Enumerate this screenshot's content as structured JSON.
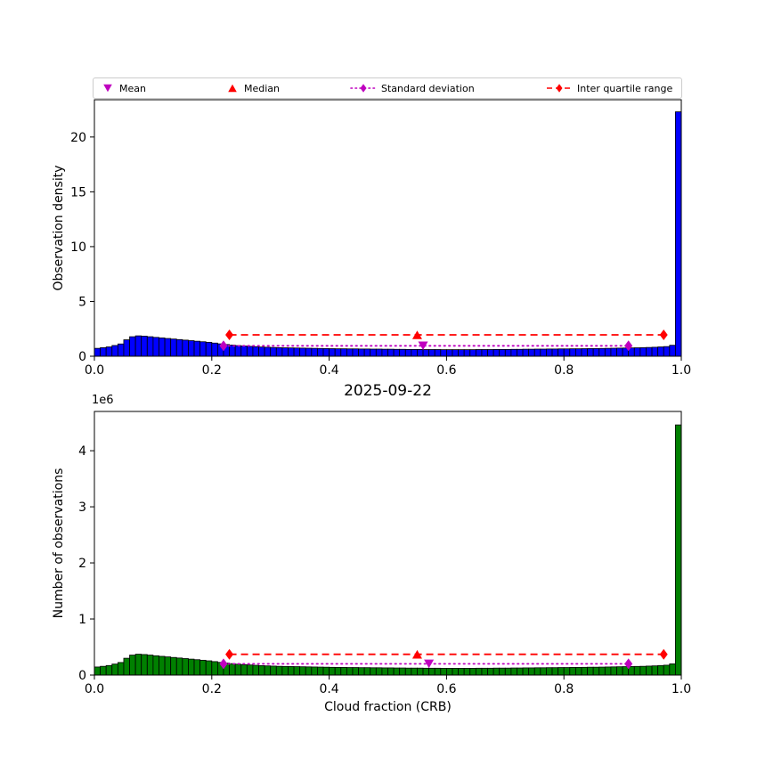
{
  "figure": {
    "title": "2025-09-22",
    "xlabel": "Cloud fraction (CRB)",
    "offset_text": "1e6"
  },
  "legend": {
    "items": [
      {
        "label": "Mean",
        "marker": "triangle-down",
        "color": "#bf00bf",
        "line": "none"
      },
      {
        "label": "Median",
        "marker": "triangle-up",
        "color": "#ff0000",
        "line": "none"
      },
      {
        "label": "Standard deviation",
        "marker": "diamond",
        "color": "#bf00bf",
        "line": "dotted"
      },
      {
        "label": "Inter quartile range",
        "marker": "diamond",
        "color": "#ff0000",
        "line": "dashed"
      }
    ]
  },
  "chart_data": [
    {
      "name": "observation-density-histogram",
      "type": "bar",
      "title": "",
      "xlabel": "",
      "ylabel": "Observation density",
      "bar_color": "#0000ff",
      "edge_color": "#000000",
      "xlim": [
        0.0,
        1.0
      ],
      "ylim": [
        0,
        23.4
      ],
      "xticks": [
        0.0,
        0.2,
        0.4,
        0.6,
        0.8,
        1.0
      ],
      "xtick_labels": [
        "0.0",
        "0.2",
        "0.4",
        "0.6",
        "0.8",
        "1.0"
      ],
      "yticks": [
        0,
        5,
        10,
        15,
        20
      ],
      "ytick_labels": [
        "0",
        "5",
        "10",
        "15",
        "20"
      ],
      "bin_start": 0.0,
      "bin_width": 0.01,
      "values": [
        0.72,
        0.78,
        0.85,
        0.98,
        1.12,
        1.5,
        1.78,
        1.86,
        1.83,
        1.78,
        1.72,
        1.67,
        1.62,
        1.57,
        1.52,
        1.47,
        1.42,
        1.37,
        1.32,
        1.27,
        1.2,
        1.13,
        1.07,
        1.02,
        0.97,
        0.93,
        0.9,
        0.87,
        0.84,
        0.82,
        0.8,
        0.78,
        0.77,
        0.76,
        0.75,
        0.74,
        0.73,
        0.72,
        0.71,
        0.7,
        0.69,
        0.68,
        0.68,
        0.67,
        0.67,
        0.66,
        0.66,
        0.65,
        0.65,
        0.64,
        0.64,
        0.63,
        0.63,
        0.62,
        0.62,
        0.62,
        0.61,
        0.61,
        0.61,
        0.6,
        0.6,
        0.6,
        0.6,
        0.6,
        0.6,
        0.61,
        0.61,
        0.61,
        0.62,
        0.62,
        0.62,
        0.63,
        0.63,
        0.64,
        0.64,
        0.65,
        0.65,
        0.66,
        0.66,
        0.67,
        0.67,
        0.68,
        0.68,
        0.69,
        0.7,
        0.7,
        0.71,
        0.72,
        0.73,
        0.74,
        0.75,
        0.76,
        0.77,
        0.78,
        0.8,
        0.82,
        0.85,
        0.88,
        1.0,
        22.3
      ],
      "stats": {
        "mean": {
          "x": 0.56,
          "y": 0.95,
          "color": "#bf00bf"
        },
        "median": {
          "x": 0.55,
          "y": 1.95,
          "color": "#ff0000"
        },
        "std_range": {
          "x1": 0.22,
          "x2": 0.91,
          "y": 0.95,
          "color": "#bf00bf",
          "style": "dotted"
        },
        "iqr_range": {
          "x1": 0.23,
          "x2": 0.97,
          "y": 1.95,
          "color": "#ff0000",
          "style": "dashed"
        }
      }
    },
    {
      "name": "number-of-observations-histogram",
      "type": "bar",
      "title": "2025-09-22",
      "xlabel": "Cloud fraction (CRB)",
      "ylabel": "Number of observations",
      "y_offset_label": "1e6",
      "bar_color": "#008000",
      "edge_color": "#000000",
      "xlim": [
        0.0,
        1.0
      ],
      "ylim": [
        0,
        4700000
      ],
      "xticks": [
        0.0,
        0.2,
        0.4,
        0.6,
        0.8,
        1.0
      ],
      "xtick_labels": [
        "0.0",
        "0.2",
        "0.4",
        "0.6",
        "0.8",
        "1.0"
      ],
      "yticks": [
        0,
        1000000,
        2000000,
        3000000,
        4000000
      ],
      "ytick_labels": [
        "0",
        "1",
        "2",
        "3",
        "4"
      ],
      "bin_start": 0.0,
      "bin_width": 0.01,
      "values": [
        144000,
        156000,
        170000,
        196000,
        224000,
        300000,
        356000,
        372000,
        366000,
        356000,
        344000,
        334000,
        324000,
        314000,
        304000,
        294000,
        284000,
        274000,
        264000,
        254000,
        240000,
        226000,
        214000,
        204000,
        194000,
        186000,
        180000,
        174000,
        168000,
        164000,
        160000,
        156000,
        154000,
        152000,
        150000,
        148000,
        146000,
        144000,
        142000,
        140000,
        138000,
        136000,
        136000,
        134000,
        134000,
        132000,
        132000,
        130000,
        130000,
        128000,
        128000,
        126000,
        126000,
        124000,
        124000,
        124000,
        122000,
        122000,
        122000,
        120000,
        120000,
        120000,
        120000,
        120000,
        120000,
        122000,
        122000,
        122000,
        124000,
        124000,
        124000,
        126000,
        126000,
        128000,
        128000,
        130000,
        130000,
        132000,
        132000,
        134000,
        134000,
        136000,
        136000,
        138000,
        140000,
        140000,
        142000,
        144000,
        146000,
        148000,
        150000,
        152000,
        154000,
        156000,
        160000,
        164000,
        170000,
        176000,
        200000,
        4460000
      ],
      "stats": {
        "mean": {
          "x": 0.57,
          "y": 200000,
          "color": "#bf00bf"
        },
        "median": {
          "x": 0.55,
          "y": 370000,
          "color": "#ff0000"
        },
        "std_range": {
          "x1": 0.22,
          "x2": 0.91,
          "y": 200000,
          "color": "#bf00bf",
          "style": "dotted"
        },
        "iqr_range": {
          "x1": 0.23,
          "x2": 0.97,
          "y": 370000,
          "color": "#ff0000",
          "style": "dashed"
        }
      }
    }
  ]
}
